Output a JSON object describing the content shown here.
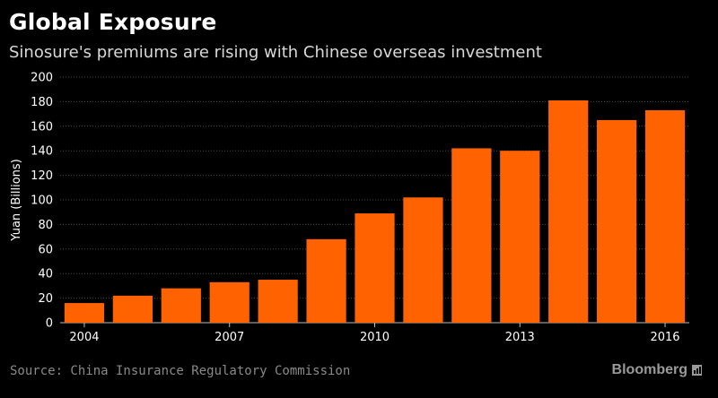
{
  "header": {
    "title": "Global Exposure",
    "subtitle": "Sinosure's premiums are rising with Chinese overseas investment"
  },
  "footer": {
    "source": "Source: China Insurance Regulatory Commission",
    "brand": "Bloomberg",
    "brand_icon": "bar-chart-icon"
  },
  "colors": {
    "bar": "#ff6200",
    "grid": "#4a4a4a",
    "text": "#ffffff",
    "background": "#000000"
  },
  "chart_data": {
    "type": "bar",
    "title": "Global Exposure",
    "subtitle": "Sinosure's premiums are rising with Chinese overseas investment",
    "ylabel": "Yuan (Billions)",
    "xlabel": "",
    "ylim": [
      0,
      200
    ],
    "yticks": [
      0,
      20,
      40,
      60,
      80,
      100,
      120,
      140,
      160,
      180,
      200
    ],
    "xtick_labels": [
      "2004",
      "2007",
      "2010",
      "2013",
      "2016"
    ],
    "categories": [
      "2004",
      "2005",
      "2006",
      "2007",
      "2008",
      "2009",
      "2010",
      "2011",
      "2012",
      "2013",
      "2014",
      "2015",
      "2016"
    ],
    "values": [
      16,
      22,
      28,
      33,
      35,
      68,
      89,
      102,
      142,
      140,
      181,
      165,
      173
    ],
    "grid": true,
    "legend": "none"
  }
}
